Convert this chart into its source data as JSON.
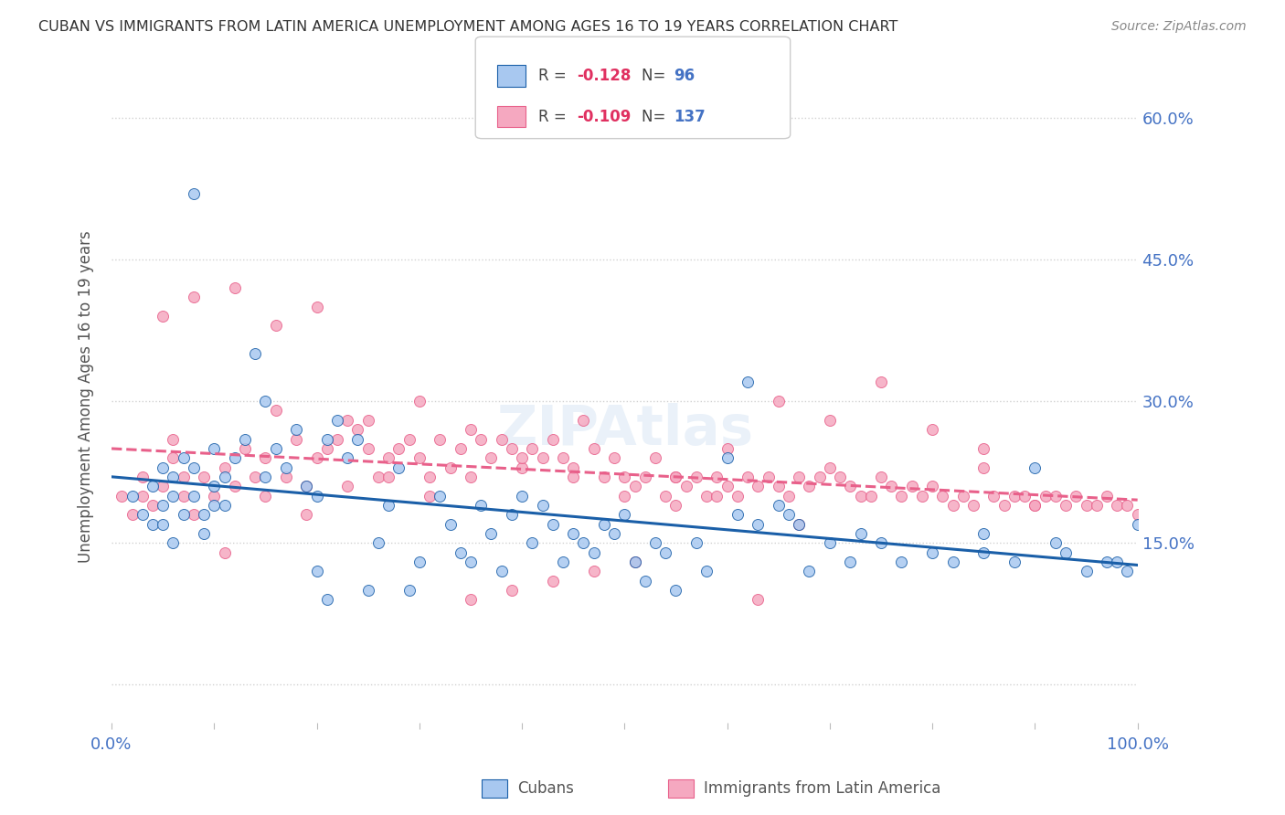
{
  "title": "CUBAN VS IMMIGRANTS FROM LATIN AMERICA UNEMPLOYMENT AMONG AGES 16 TO 19 YEARS CORRELATION CHART",
  "source": "Source: ZipAtlas.com",
  "ylabel": "Unemployment Among Ages 16 to 19 years",
  "xlim": [
    0,
    100
  ],
  "ylim": [
    -4,
    65
  ],
  "yticks": [
    0,
    15,
    30,
    45,
    60
  ],
  "ytick_labels": [
    "",
    "15.0%",
    "30.0%",
    "45.0%",
    "60.0%"
  ],
  "cubans_color": "#a8c8f0",
  "latin_color": "#f5a8c0",
  "cubans_trend_color": "#1a5fa8",
  "latin_trend_color": "#e8608a",
  "cubans_label": "Cubans",
  "latin_label": "Immigrants from Latin America",
  "background_color": "#ffffff",
  "grid_color": "#cccccc",
  "title_color": "#333333",
  "cubans_x": [
    2,
    3,
    4,
    4,
    5,
    5,
    5,
    6,
    6,
    6,
    7,
    7,
    8,
    8,
    8,
    9,
    9,
    10,
    10,
    10,
    11,
    11,
    12,
    13,
    14,
    15,
    15,
    16,
    17,
    18,
    19,
    20,
    20,
    21,
    21,
    22,
    23,
    24,
    25,
    26,
    27,
    28,
    29,
    30,
    32,
    33,
    34,
    35,
    36,
    37,
    38,
    39,
    40,
    41,
    42,
    43,
    44,
    45,
    46,
    47,
    48,
    49,
    50,
    51,
    52,
    53,
    54,
    55,
    57,
    58,
    60,
    61,
    62,
    63,
    65,
    67,
    68,
    70,
    72,
    75,
    77,
    80,
    82,
    85,
    88,
    90,
    92,
    93,
    95,
    97,
    98,
    99,
    100,
    85,
    73,
    66
  ],
  "cubans_y": [
    20,
    18,
    17,
    21,
    17,
    19,
    23,
    15,
    20,
    22,
    18,
    24,
    52,
    20,
    23,
    16,
    18,
    19,
    21,
    25,
    19,
    22,
    24,
    26,
    35,
    22,
    30,
    25,
    23,
    27,
    21,
    20,
    12,
    26,
    9,
    28,
    24,
    26,
    10,
    15,
    19,
    23,
    10,
    13,
    20,
    17,
    14,
    13,
    19,
    16,
    12,
    18,
    20,
    15,
    19,
    17,
    13,
    16,
    15,
    14,
    17,
    16,
    18,
    13,
    11,
    15,
    14,
    10,
    15,
    12,
    24,
    18,
    32,
    17,
    19,
    17,
    12,
    15,
    13,
    15,
    13,
    14,
    13,
    16,
    13,
    23,
    15,
    14,
    12,
    13,
    13,
    12,
    17,
    14,
    16,
    18
  ],
  "latin_x": [
    1,
    2,
    3,
    4,
    5,
    6,
    6,
    7,
    8,
    9,
    10,
    11,
    12,
    13,
    14,
    15,
    16,
    17,
    18,
    19,
    20,
    21,
    22,
    23,
    24,
    25,
    26,
    27,
    28,
    29,
    30,
    31,
    32,
    33,
    34,
    35,
    36,
    37,
    38,
    39,
    40,
    41,
    42,
    43,
    44,
    45,
    46,
    47,
    48,
    49,
    50,
    51,
    52,
    53,
    54,
    55,
    56,
    57,
    58,
    59,
    60,
    61,
    62,
    63,
    64,
    65,
    66,
    67,
    68,
    69,
    70,
    71,
    72,
    73,
    74,
    75,
    76,
    77,
    78,
    79,
    80,
    81,
    82,
    83,
    84,
    85,
    86,
    87,
    88,
    89,
    90,
    91,
    92,
    93,
    94,
    95,
    96,
    97,
    98,
    99,
    100,
    5,
    8,
    12,
    16,
    20,
    25,
    30,
    35,
    40,
    45,
    50,
    55,
    60,
    65,
    70,
    75,
    80,
    85,
    90,
    3,
    7,
    11,
    15,
    19,
    23,
    27,
    31,
    35,
    39,
    43,
    47,
    51,
    55,
    59,
    63,
    67
  ],
  "latin_y": [
    20,
    18,
    22,
    19,
    21,
    24,
    26,
    20,
    18,
    22,
    20,
    23,
    21,
    25,
    22,
    24,
    29,
    22,
    26,
    21,
    24,
    25,
    26,
    28,
    27,
    25,
    22,
    24,
    25,
    26,
    24,
    22,
    26,
    23,
    25,
    22,
    26,
    24,
    26,
    25,
    23,
    25,
    24,
    26,
    24,
    23,
    28,
    25,
    22,
    24,
    22,
    21,
    22,
    24,
    20,
    22,
    21,
    22,
    20,
    22,
    21,
    20,
    22,
    21,
    22,
    21,
    20,
    22,
    21,
    22,
    23,
    22,
    21,
    20,
    20,
    22,
    21,
    20,
    21,
    20,
    21,
    20,
    19,
    20,
    19,
    25,
    20,
    19,
    20,
    20,
    19,
    20,
    20,
    19,
    20,
    19,
    19,
    20,
    19,
    19,
    18,
    39,
    41,
    42,
    38,
    40,
    28,
    30,
    27,
    24,
    22,
    20,
    22,
    25,
    30,
    28,
    32,
    27,
    23,
    19,
    20,
    22,
    14,
    20,
    18,
    21,
    22,
    20,
    9,
    10,
    11,
    12,
    13,
    19,
    20,
    9,
    17
  ]
}
